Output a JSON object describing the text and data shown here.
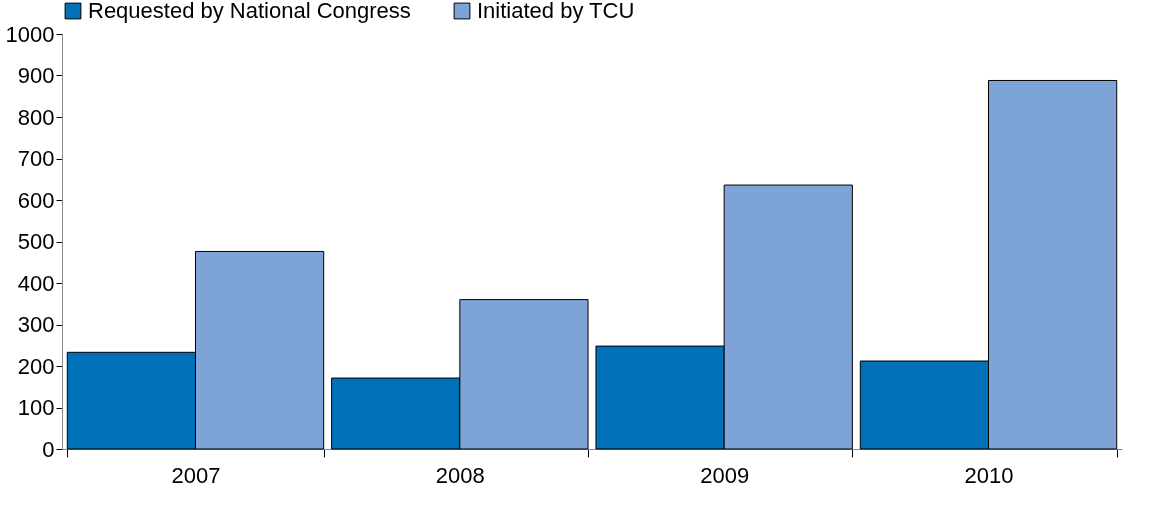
{
  "chart_data": {
    "type": "bar",
    "categories": [
      "2007",
      "2008",
      "2009",
      "2010"
    ],
    "series": [
      {
        "name": "Requested by National Congress",
        "color": "#0070b8",
        "values": [
          233,
          171,
          248,
          212
        ]
      },
      {
        "name": "Initiated by TCU",
        "color": "#7ea3d6",
        "values": [
          476,
          360,
          636,
          888
        ]
      }
    ],
    "ylim": [
      0,
      1000
    ],
    "yticks": [
      0,
      100,
      200,
      300,
      400,
      500,
      600,
      700,
      800,
      900,
      1000
    ],
    "grid": false,
    "legend": "top"
  }
}
